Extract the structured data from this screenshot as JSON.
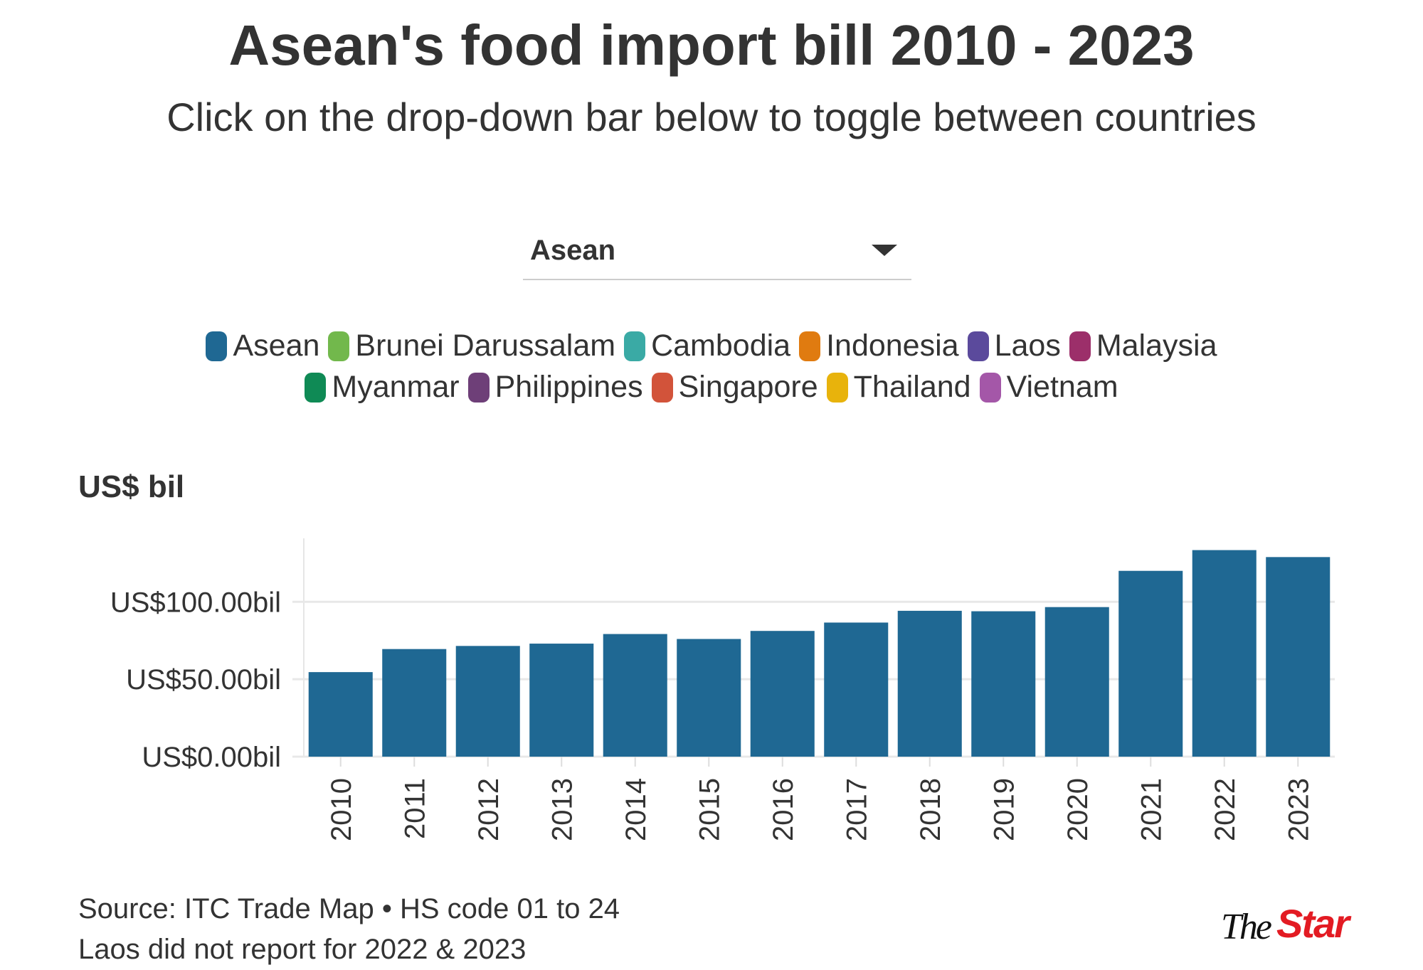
{
  "header": {
    "title": "Asean's food import bill 2010 - 2023",
    "subtitle": "Click on the drop-down bar below to toggle between countries"
  },
  "dropdown": {
    "selected": "Asean",
    "icon": "caret-down-icon"
  },
  "legend": [
    {
      "label": "Asean",
      "color": "#1f6893"
    },
    {
      "label": "Brunei Darussalam",
      "color": "#72b84c"
    },
    {
      "label": "Cambodia",
      "color": "#3aaaa5"
    },
    {
      "label": "Indonesia",
      "color": "#e07b10"
    },
    {
      "label": "Laos",
      "color": "#5b4a9c"
    },
    {
      "label": "Malaysia",
      "color": "#9c2f6a"
    },
    {
      "label": "Myanmar",
      "color": "#0f8a55"
    },
    {
      "label": "Philippines",
      "color": "#6e3f78"
    },
    {
      "label": "Singapore",
      "color": "#d2533a"
    },
    {
      "label": "Thailand",
      "color": "#e8b30c"
    },
    {
      "label": "Vietnam",
      "color": "#a457a8"
    }
  ],
  "chart_data": {
    "type": "bar",
    "ylabel": "US$ bil",
    "categories": [
      "2010",
      "2011",
      "2012",
      "2013",
      "2014",
      "2015",
      "2016",
      "2017",
      "2018",
      "2019",
      "2020",
      "2021",
      "2022",
      "2023"
    ],
    "values": [
      54.6,
      69.5,
      71.5,
      73.0,
      79.2,
      76.0,
      81.2,
      86.6,
      94.2,
      93.9,
      96.6,
      120.0,
      133.4,
      128.9
    ],
    "ylim": [
      0,
      141
    ],
    "yticks": [
      0,
      50,
      100
    ],
    "ytick_labels": [
      "US$0.00bil",
      "US$50.00bil",
      "US$100.00bil"
    ],
    "bar_color": "#1f6893",
    "grid": true
  },
  "footer": {
    "source": "Source: ITC Trade Map • HS code 01 to 24",
    "note": "Laos did not report for 2022 & 2023",
    "logo_text": "The Star"
  }
}
